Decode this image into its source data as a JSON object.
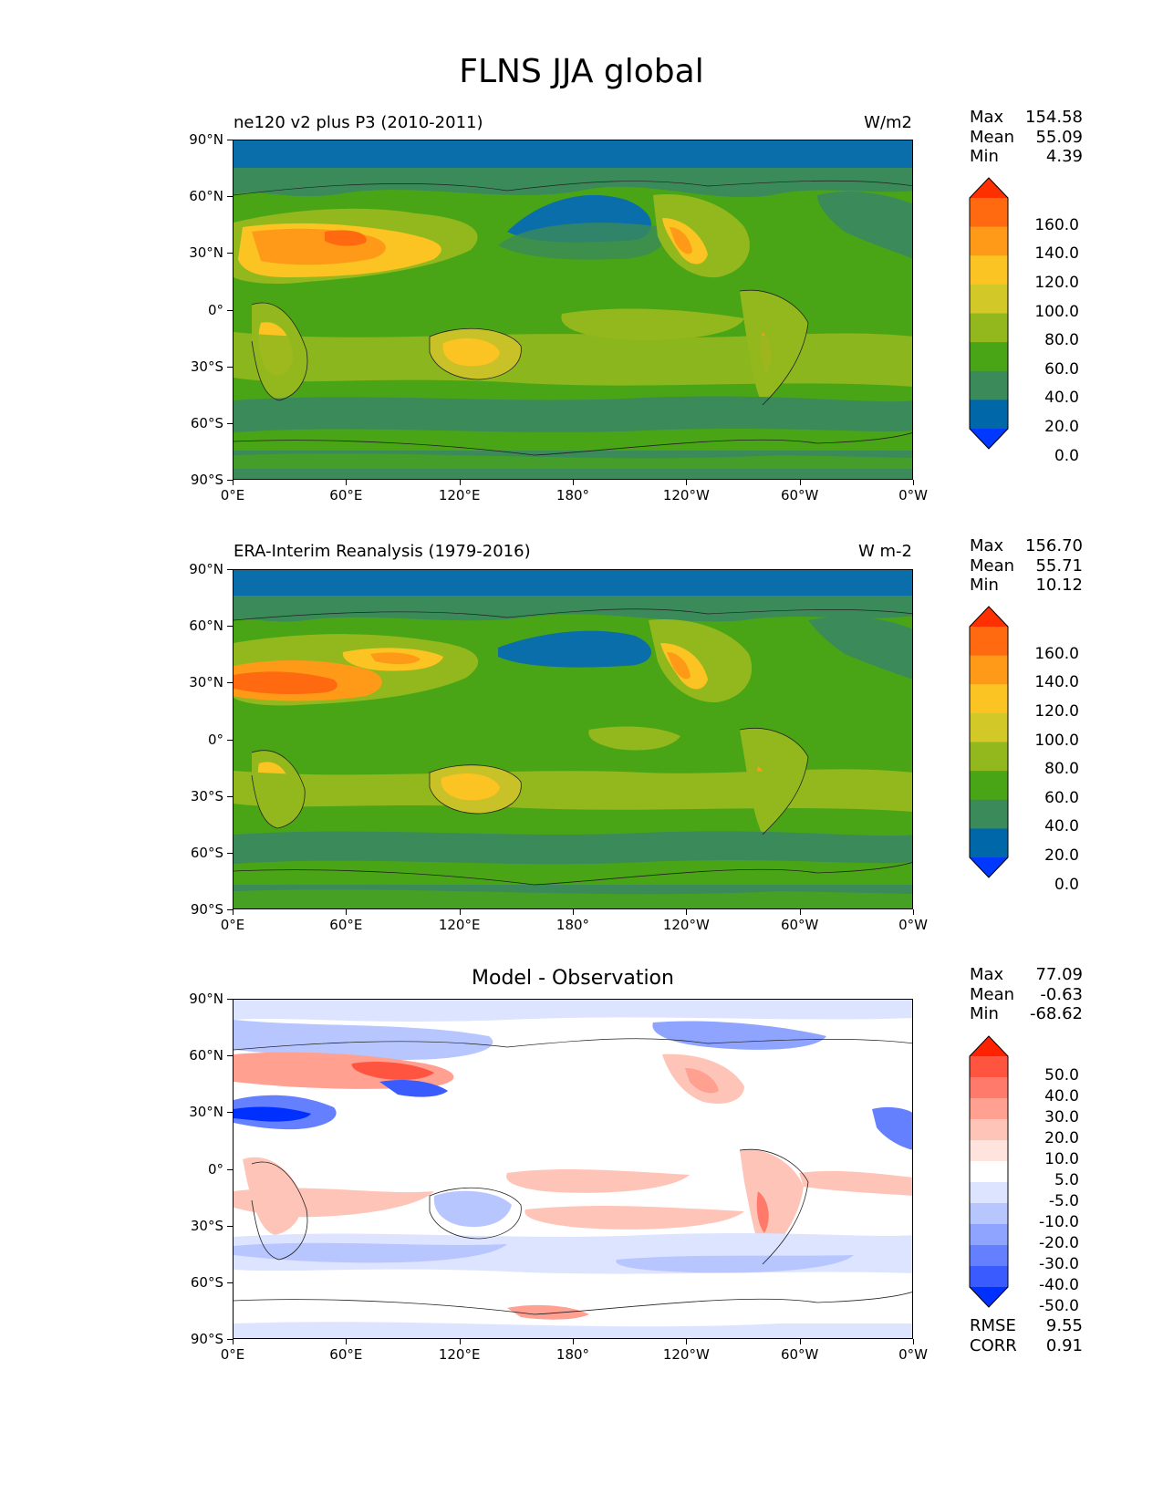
{
  "figure": {
    "title": "FLNS JJA global"
  },
  "axes": {
    "yticks": [
      "90°N",
      "60°N",
      "30°N",
      "0°",
      "30°S",
      "60°S",
      "90°S"
    ],
    "xticks": [
      "0°E",
      "60°E",
      "120°E",
      "180°",
      "120°W",
      "60°W",
      "0°W"
    ]
  },
  "panels": [
    {
      "left_title": "ne120 v2 plus P3 (2010-2011)",
      "right_title": "W/m2",
      "stats": [
        {
          "label": "Max",
          "value": "154.58"
        },
        {
          "label": "Mean",
          "value": "55.09"
        },
        {
          "label": "Min",
          "value": "4.39"
        }
      ],
      "colorbar": {
        "labels": [
          "160.0",
          "140.0",
          "120.0",
          "100.0",
          "80.0",
          "60.0",
          "40.0",
          "20.0",
          "0.0"
        ],
        "colors": [
          "#ff3000",
          "#ff6a10",
          "#ff9a18",
          "#fbc422",
          "#d2c828",
          "#93b81e",
          "#4aa516",
          "#3a8a5a",
          "#0068a8",
          "#0038ff"
        ]
      }
    },
    {
      "left_title": "ERA-Interim Reanalysis (1979-2016)",
      "right_title": "W m-2",
      "stats": [
        {
          "label": "Max",
          "value": "156.70"
        },
        {
          "label": "Mean",
          "value": "55.71"
        },
        {
          "label": "Min",
          "value": "10.12"
        }
      ],
      "colorbar": {
        "labels": [
          "160.0",
          "140.0",
          "120.0",
          "100.0",
          "80.0",
          "60.0",
          "40.0",
          "20.0",
          "0.0"
        ],
        "colors": [
          "#ff3000",
          "#ff6a10",
          "#ff9a18",
          "#fbc422",
          "#d2c828",
          "#93b81e",
          "#4aa516",
          "#3a8a5a",
          "#0068a8",
          "#0038ff"
        ]
      }
    },
    {
      "center_title": "Model - Observation",
      "stats": [
        {
          "label": "Max",
          "value": "77.09"
        },
        {
          "label": "Mean",
          "value": "-0.63"
        },
        {
          "label": "Min",
          "value": "-68.62"
        }
      ],
      "extra_stats": [
        {
          "label": "RMSE",
          "value": "9.55"
        },
        {
          "label": "CORR",
          "value": "0.91"
        }
      ],
      "colorbar": {
        "labels": [
          "50.0",
          "40.0",
          "30.0",
          "20.0",
          "10.0",
          "5.0",
          "-5.0",
          "-10.0",
          "-20.0",
          "-30.0",
          "-40.0",
          "-50.0"
        ],
        "colors": [
          "#ff2200",
          "#ff5540",
          "#ff7a6a",
          "#ffa090",
          "#ffc4b8",
          "#ffe4de",
          "#ffffff",
          "#dde4ff",
          "#b8c6ff",
          "#8ea4ff",
          "#6480ff",
          "#3a5cff",
          "#0030ff"
        ]
      }
    }
  ],
  "colors": {
    "polar": "#0a6eaa",
    "ocean_green": "#4aa516",
    "ocean_mid": "#3a8a5a",
    "yellowgreen": "#93b81e",
    "olive": "#c8c228",
    "yellow": "#fbc422",
    "orange": "#ff9a18",
    "deep_orange": "#ff6a10"
  }
}
